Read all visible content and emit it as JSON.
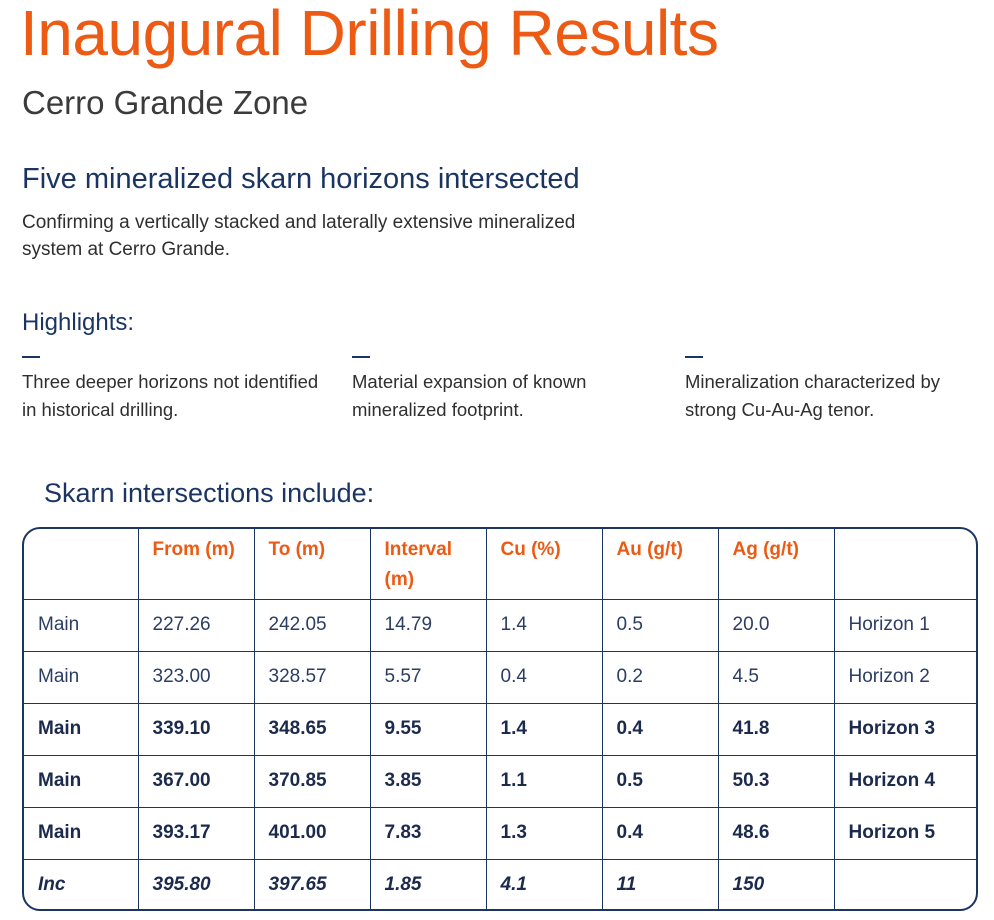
{
  "title": "Inaugural Drilling Results",
  "subtitle": "Cerro Grande Zone",
  "section": {
    "heading": "Five mineralized skarn horizons intersected",
    "description": "Confirming a vertically stacked and laterally extensive mineralized system at Cerro Grande."
  },
  "highlights": {
    "title": "Highlights:",
    "items": [
      {
        "text": "Three deeper horizons not identified in historical drilling."
      },
      {
        "text": "Material expansion of known mineralized footprint."
      },
      {
        "text": "Mineralization characterized by strong Cu-Au-Ag tenor."
      }
    ]
  },
  "table": {
    "title": "Skarn intersections include:",
    "headers": [
      "",
      "From (m)",
      "To (m)",
      "Interval (m)",
      "Cu (%)",
      "Au (g/t)",
      "Ag (g/t)",
      ""
    ],
    "rows": [
      {
        "style": "regular",
        "cells": [
          "Main",
          "227.26",
          "242.05",
          "14.79",
          "1.4",
          "0.5",
          "20.0",
          "Horizon 1"
        ]
      },
      {
        "style": "regular",
        "cells": [
          "Main",
          "323.00",
          "328.57",
          "5.57",
          "0.4",
          "0.2",
          "4.5",
          "Horizon 2"
        ]
      },
      {
        "style": "bold",
        "cells": [
          "Main",
          "339.10",
          "348.65",
          "9.55",
          "1.4",
          "0.4",
          "41.8",
          "Horizon 3"
        ]
      },
      {
        "style": "bold",
        "cells": [
          "Main",
          "367.00",
          "370.85",
          "3.85",
          "1.1",
          "0.5",
          "50.3",
          "Horizon 4"
        ]
      },
      {
        "style": "bold",
        "cells": [
          "Main",
          "393.17",
          "401.00",
          "7.83",
          "1.3",
          "0.4",
          "48.6",
          "Horizon 5"
        ]
      },
      {
        "style": "italic",
        "cells": [
          "Inc",
          "395.80",
          "397.65",
          "1.85",
          "4.1",
          "11",
          "150",
          ""
        ]
      }
    ]
  },
  "colors": {
    "accent": "#ec5a13",
    "navy": "#1b3563"
  }
}
